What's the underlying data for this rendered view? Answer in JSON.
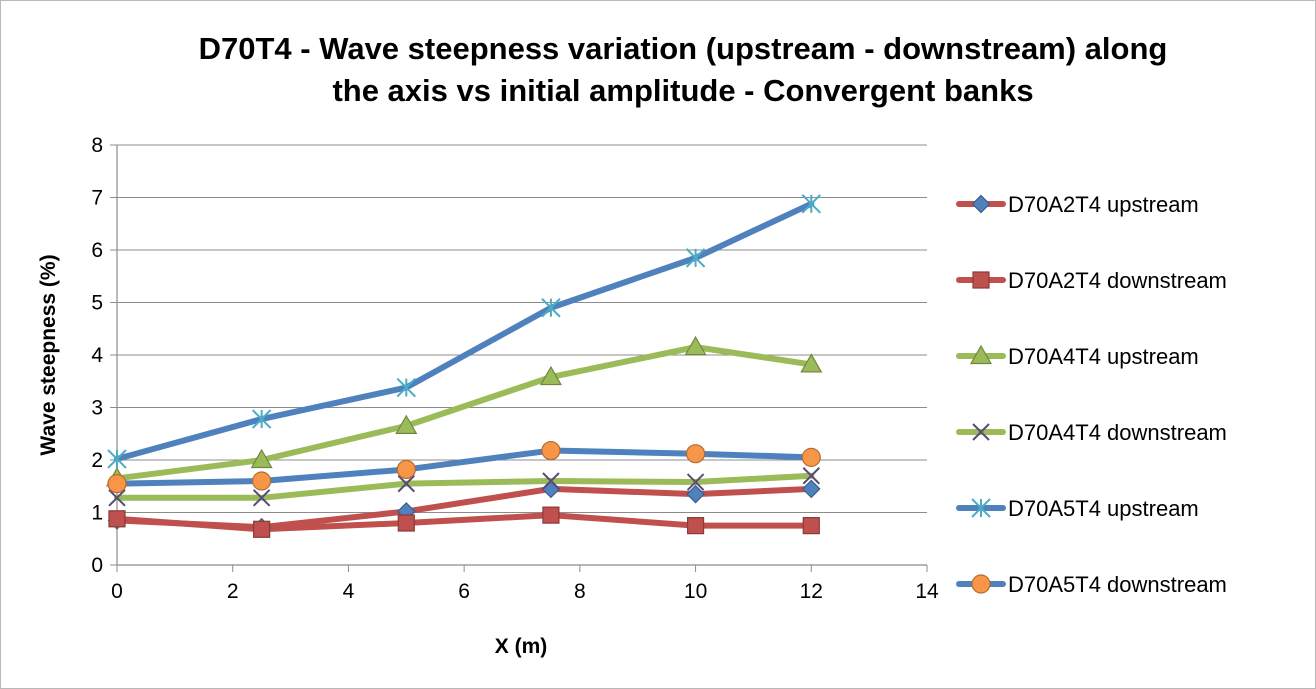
{
  "chart_data": {
    "type": "line",
    "title_lines": [
      "D70T4 - Wave steepness variation (upstream - downstream) along",
      "the axis vs initial amplitude - Convergent banks"
    ],
    "xlabel": "X (m)",
    "ylabel": "Wave steepness (%)",
    "xlim": [
      0,
      14
    ],
    "ylim": [
      0,
      8
    ],
    "xticks": [
      0,
      2,
      4,
      6,
      8,
      10,
      12,
      14
    ],
    "yticks": [
      0,
      1,
      2,
      3,
      4,
      5,
      6,
      7,
      8
    ],
    "grid": "horizontal",
    "legend_position": "right",
    "x": [
      0,
      2.5,
      5,
      7.5,
      10,
      12
    ],
    "series": [
      {
        "name": "D70A2T4 upstream",
        "values": [
          0.85,
          0.72,
          1.02,
          1.45,
          1.35,
          1.45
        ],
        "line_color": "#c0504d",
        "marker": "diamond",
        "marker_color": "#4f81bd"
      },
      {
        "name": "D70A2T4 downstream",
        "values": [
          0.88,
          0.68,
          0.8,
          0.95,
          0.75,
          0.75
        ],
        "line_color": "#c0504d",
        "marker": "square",
        "marker_color": "#c0504d"
      },
      {
        "name": "D70A4T4 upstream",
        "values": [
          1.65,
          2.0,
          2.65,
          3.58,
          4.15,
          3.82
        ],
        "line_color": "#9bbb59",
        "marker": "triangle",
        "marker_color": "#9bbb59"
      },
      {
        "name": "D70A4T4 downstream",
        "values": [
          1.28,
          1.28,
          1.55,
          1.6,
          1.58,
          1.7
        ],
        "line_color": "#9bbb59",
        "marker": "x",
        "marker_color": "#5a4a78"
      },
      {
        "name": "D70A5T4 upstream",
        "values": [
          2.02,
          2.78,
          3.38,
          4.9,
          5.85,
          6.88
        ],
        "line_color": "#4f81bd",
        "marker": "star",
        "marker_color": "#4bacc6"
      },
      {
        "name": "D70A5T4 downstream",
        "values": [
          1.55,
          1.6,
          1.82,
          2.18,
          2.12,
          2.05
        ],
        "line_color": "#4f81bd",
        "marker": "circle",
        "marker_color": "#f79646"
      }
    ]
  }
}
